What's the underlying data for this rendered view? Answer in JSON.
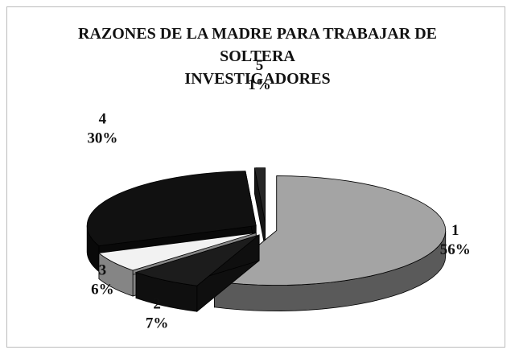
{
  "chart_data": {
    "type": "pie3d",
    "title": "RAZONES DE LA MADRE PARA TRABAJAR DE SOLTERA",
    "subtitle": "INVESTIGADORES",
    "categories": [
      "1",
      "2",
      "3",
      "4",
      "5"
    ],
    "values": [
      56,
      7,
      6,
      30,
      1
    ],
    "value_labels": [
      "56%",
      "7%",
      "6%",
      "30%",
      "1%"
    ],
    "colors": [
      "#a4a4a4",
      "#1c1c1c",
      "#f2f2f2",
      "#111111",
      "#262626"
    ]
  }
}
